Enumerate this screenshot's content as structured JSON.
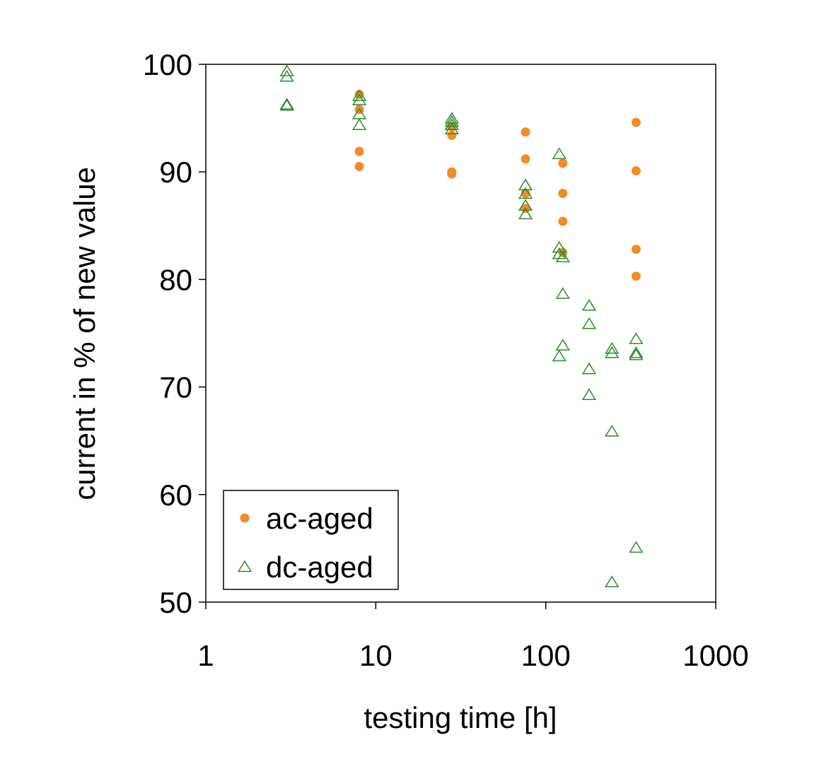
{
  "chart_data": {
    "type": "scatter",
    "title": "",
    "xlabel": "testing time [h]",
    "ylabel": "current in % of new value",
    "xscale": "log",
    "xlim": [
      1,
      1000
    ],
    "ylim": [
      50,
      100
    ],
    "xticks": [
      1,
      10,
      100,
      1000
    ],
    "xtick_labels": [
      "1",
      "10",
      "100",
      "1000"
    ],
    "yticks": [
      50,
      60,
      70,
      80,
      90,
      100
    ],
    "ytick_labels": [
      "50",
      "60",
      "70",
      "80",
      "90",
      "100"
    ],
    "grid": false,
    "legend_position": "bottom-left",
    "series": [
      {
        "name": "ac-aged",
        "marker": "filled-circle",
        "color": "#f28c28",
        "points": [
          {
            "x": 8,
            "y": 97.2
          },
          {
            "x": 8,
            "y": 95.8
          },
          {
            "x": 8,
            "y": 91.9
          },
          {
            "x": 8,
            "y": 90.5
          },
          {
            "x": 28,
            "y": 94.2
          },
          {
            "x": 28,
            "y": 93.4
          },
          {
            "x": 28,
            "y": 90.0
          },
          {
            "x": 28,
            "y": 89.8
          },
          {
            "x": 76,
            "y": 93.7
          },
          {
            "x": 76,
            "y": 91.2
          },
          {
            "x": 76,
            "y": 88.0
          },
          {
            "x": 76,
            "y": 86.6
          },
          {
            "x": 126,
            "y": 90.8
          },
          {
            "x": 126,
            "y": 88.0
          },
          {
            "x": 126,
            "y": 85.4
          },
          {
            "x": 126,
            "y": 82.5
          },
          {
            "x": 340,
            "y": 94.6
          },
          {
            "x": 340,
            "y": 90.1
          },
          {
            "x": 340,
            "y": 82.8
          },
          {
            "x": 340,
            "y": 80.3
          }
        ]
      },
      {
        "name": "dc-aged",
        "marker": "open-triangle",
        "color": "#2e8b2e",
        "points": [
          {
            "x": 3,
            "y": 99.3
          },
          {
            "x": 3,
            "y": 98.8
          },
          {
            "x": 3,
            "y": 96.2
          },
          {
            "x": 3,
            "y": 96.1
          },
          {
            "x": 8,
            "y": 97.0
          },
          {
            "x": 8,
            "y": 96.6
          },
          {
            "x": 8,
            "y": 95.3
          },
          {
            "x": 8,
            "y": 94.3
          },
          {
            "x": 28,
            "y": 94.9
          },
          {
            "x": 28,
            "y": 94.6
          },
          {
            "x": 28,
            "y": 94.3
          },
          {
            "x": 28,
            "y": 93.9
          },
          {
            "x": 76,
            "y": 88.7
          },
          {
            "x": 76,
            "y": 87.9
          },
          {
            "x": 76,
            "y": 86.8
          },
          {
            "x": 76,
            "y": 86.0
          },
          {
            "x": 120,
            "y": 91.6
          },
          {
            "x": 120,
            "y": 82.9
          },
          {
            "x": 120,
            "y": 82.3
          },
          {
            "x": 120,
            "y": 72.8
          },
          {
            "x": 126,
            "y": 82.0
          },
          {
            "x": 126,
            "y": 78.6
          },
          {
            "x": 126,
            "y": 73.8
          },
          {
            "x": 180,
            "y": 77.5
          },
          {
            "x": 180,
            "y": 75.8
          },
          {
            "x": 180,
            "y": 71.6
          },
          {
            "x": 180,
            "y": 69.2
          },
          {
            "x": 245,
            "y": 73.5
          },
          {
            "x": 245,
            "y": 73.1
          },
          {
            "x": 245,
            "y": 65.8
          },
          {
            "x": 245,
            "y": 51.8
          },
          {
            "x": 340,
            "y": 74.4
          },
          {
            "x": 340,
            "y": 73.1
          },
          {
            "x": 340,
            "y": 72.9
          },
          {
            "x": 340,
            "y": 55.0
          }
        ]
      }
    ]
  }
}
